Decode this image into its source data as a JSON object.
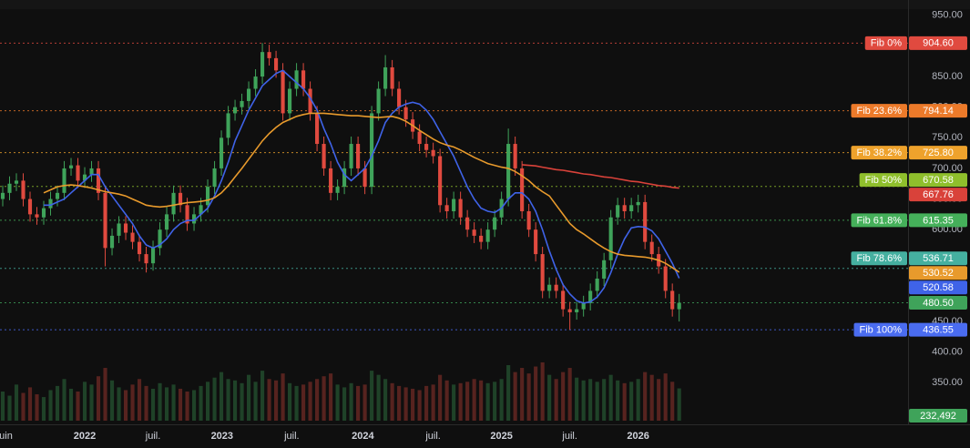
{
  "chart_data": {
    "type": "candlestick",
    "xlim": [
      -0.4,
      132.5
    ],
    "xticks": [
      {
        "value": 0.3,
        "label": "juin"
      },
      {
        "value": 12,
        "label": "2022"
      },
      {
        "value": 22,
        "label": "juil."
      },
      {
        "value": 32.1,
        "label": "2023"
      },
      {
        "value": 42.3,
        "label": "juil."
      },
      {
        "value": 52.7,
        "label": "2024"
      },
      {
        "value": 63,
        "label": "juil."
      },
      {
        "value": 73,
        "label": "2025"
      },
      {
        "value": 83,
        "label": "juil."
      },
      {
        "value": 93,
        "label": "2026"
      }
    ],
    "ylim": [
      288,
      975
    ],
    "yticks": [
      {
        "value": 350,
        "label": "350.00"
      },
      {
        "value": 400,
        "label": "400.00"
      },
      {
        "value": 450,
        "label": "450.00"
      },
      {
        "value": 500,
        "label": "500.00"
      },
      {
        "value": 550,
        "label": "550.00"
      },
      {
        "value": 600,
        "label": "600.00"
      },
      {
        "value": 650,
        "label": "650.00"
      },
      {
        "value": 700,
        "label": "700.00"
      },
      {
        "value": 750,
        "label": "750.00"
      },
      {
        "value": 800,
        "label": "800.00"
      },
      {
        "value": 850,
        "label": "850.00"
      },
      {
        "value": 900,
        "label": "900.00"
      },
      {
        "value": 950,
        "label": "950.00"
      }
    ],
    "up_color": "#3fa35a",
    "down_color": "#e04a3f",
    "open": [
      650,
      660,
      675,
      680,
      650,
      625,
      620,
      635,
      650,
      660,
      700,
      705,
      680,
      690,
      700,
      660,
      570,
      590,
      610,
      595,
      580,
      560,
      545,
      570,
      600,
      625,
      660,
      640,
      610,
      625,
      640,
      670,
      700,
      750,
      790,
      800,
      810,
      830,
      850,
      890,
      880,
      860,
      790,
      830,
      860,
      830,
      790,
      740,
      700,
      660,
      670,
      700,
      740,
      700,
      670,
      790,
      830,
      865,
      830,
      800,
      780,
      760,
      740,
      730,
      720,
      640,
      630,
      650,
      620,
      600,
      590,
      580,
      600,
      620,
      650,
      740,
      700,
      630,
      600,
      560,
      500,
      510,
      500,
      470,
      465,
      470,
      480,
      500,
      520,
      550,
      620,
      640,
      630,
      640,
      645,
      580,
      560,
      540,
      500,
      470
    ],
    "high": [
      672,
      687,
      692,
      692,
      662,
      637,
      647,
      662,
      672,
      712,
      717,
      717,
      702,
      712,
      712,
      672,
      602,
      622,
      622,
      607,
      592,
      572,
      582,
      612,
      637,
      672,
      672,
      652,
      637,
      652,
      682,
      712,
      762,
      802,
      812,
      822,
      842,
      862,
      904.6,
      902,
      892,
      872,
      842,
      872,
      872,
      842,
      802,
      752,
      712,
      682,
      712,
      752,
      752,
      712,
      802,
      842,
      885,
      877,
      842,
      812,
      792,
      772,
      752,
      742,
      732,
      652,
      662,
      662,
      632,
      612,
      602,
      612,
      632,
      662,
      765,
      752,
      712,
      642,
      612,
      572,
      522,
      522,
      512,
      482,
      482,
      492,
      512,
      532,
      562,
      632,
      652,
      652,
      652,
      657,
      657,
      592,
      572,
      552,
      512,
      495
    ],
    "low": [
      638,
      648,
      663,
      638,
      613,
      608,
      608,
      623,
      638,
      648,
      688,
      668,
      668,
      678,
      648,
      540,
      558,
      578,
      583,
      568,
      548,
      530,
      533,
      558,
      588,
      613,
      628,
      598,
      598,
      613,
      628,
      658,
      688,
      738,
      778,
      788,
      798,
      818,
      838,
      868,
      848,
      778,
      778,
      818,
      818,
      778,
      728,
      688,
      648,
      648,
      658,
      688,
      688,
      658,
      658,
      778,
      818,
      818,
      788,
      768,
      748,
      728,
      718,
      708,
      628,
      618,
      618,
      608,
      588,
      578,
      568,
      568,
      588,
      608,
      638,
      688,
      618,
      588,
      548,
      488,
      488,
      488,
      458,
      436.55,
      453,
      458,
      468,
      488,
      508,
      538,
      608,
      618,
      618,
      628,
      568,
      548,
      528,
      488,
      458,
      450
    ],
    "close": [
      660,
      675,
      680,
      650,
      625,
      620,
      635,
      650,
      660,
      700,
      705,
      680,
      690,
      700,
      660,
      570,
      590,
      610,
      595,
      580,
      560,
      545,
      570,
      600,
      625,
      660,
      640,
      610,
      625,
      640,
      670,
      700,
      750,
      790,
      800,
      810,
      830,
      850,
      890,
      880,
      860,
      790,
      830,
      860,
      830,
      790,
      740,
      700,
      660,
      670,
      700,
      740,
      700,
      670,
      790,
      830,
      865,
      830,
      800,
      780,
      760,
      740,
      730,
      720,
      640,
      630,
      650,
      620,
      600,
      590,
      580,
      600,
      620,
      650,
      740,
      700,
      630,
      600,
      560,
      500,
      510,
      500,
      470,
      465,
      470,
      480,
      500,
      520,
      550,
      620,
      640,
      630,
      640,
      645,
      580,
      560,
      540,
      500,
      470,
      480.5
    ],
    "last_price_label": "480.50",
    "volume": {
      "lim": [
        0,
        800000
      ],
      "last_label": "232,492",
      "values": [
        210000,
        180000,
        260000,
        200000,
        240000,
        190000,
        170000,
        220000,
        250000,
        300000,
        230000,
        210000,
        280000,
        260000,
        320000,
        380000,
        290000,
        240000,
        220000,
        260000,
        300000,
        250000,
        230000,
        270000,
        240000,
        260000,
        230000,
        210000,
        220000,
        250000,
        280000,
        310000,
        350000,
        300000,
        290000,
        270000,
        330000,
        280000,
        360000,
        300000,
        290000,
        340000,
        270000,
        250000,
        260000,
        280000,
        300000,
        320000,
        340000,
        260000,
        240000,
        270000,
        250000,
        260000,
        360000,
        330000,
        300000,
        270000,
        250000,
        240000,
        230000,
        220000,
        250000,
        260000,
        330000,
        290000,
        260000,
        270000,
        280000,
        300000,
        290000,
        270000,
        280000,
        300000,
        400000,
        350000,
        380000,
        340000,
        390000,
        420000,
        330000,
        300000,
        350000,
        380000,
        310000,
        290000,
        300000,
        280000,
        300000,
        330000,
        290000,
        270000,
        280000,
        300000,
        350000,
        330000,
        300000,
        340000,
        280000,
        232492
      ]
    },
    "moving_averages": [
      {
        "color": "#3f63e8",
        "last_label": "520.58",
        "values": [
          null,
          null,
          null,
          null,
          null,
          null,
          640,
          640,
          645,
          650,
          660,
          670,
          680,
          690,
          690,
          670,
          655,
          640,
          625,
          610,
          590,
          575,
          570,
          575,
          585,
          600,
          610,
          615,
          615,
          625,
          635,
          655,
          680,
          710,
          745,
          770,
          795,
          815,
          835,
          845,
          855,
          860,
          850,
          840,
          830,
          815,
          795,
          765,
          740,
          710,
          690,
          680,
          690,
          700,
          720,
          745,
          775,
          790,
          800,
          805,
          808,
          805,
          795,
          780,
          760,
          740,
          720,
          695,
          670,
          650,
          635,
          630,
          628,
          635,
          650,
          660,
          660,
          650,
          630,
          600,
          565,
          535,
          510,
          495,
          484,
          480,
          482,
          490,
          505,
          530,
          560,
          585,
          603,
          605,
          604,
          598,
          585,
          565,
          545,
          520.58
        ]
      },
      {
        "color": "#e89a2c",
        "last_label": "530.52",
        "values": [
          null,
          null,
          null,
          null,
          null,
          null,
          660,
          665,
          670,
          672,
          673,
          672,
          670,
          668,
          665,
          662,
          660,
          658,
          655,
          650,
          645,
          640,
          638,
          637,
          638,
          640,
          642,
          644,
          645,
          646,
          648,
          652,
          660,
          672,
          686,
          700,
          715,
          730,
          745,
          757,
          767,
          775,
          780,
          785,
          788,
          790,
          790,
          790,
          789,
          788,
          787,
          786,
          786,
          785,
          784,
          783,
          784,
          785,
          782,
          777,
          770,
          762,
          755,
          748,
          742,
          738,
          735,
          730,
          724,
          718,
          713,
          708,
          705,
          702,
          700,
          695,
          688,
          680,
          670,
          662,
          655,
          640,
          625,
          610,
          600,
          593,
          585,
          577,
          570,
          564,
          560,
          558,
          557,
          556,
          555,
          553,
          550,
          545,
          538,
          530.52
        ]
      },
      {
        "color": "#d9423a",
        "last_label": "667.76",
        "values": [
          null,
          null,
          null,
          null,
          null,
          null,
          null,
          null,
          null,
          null,
          null,
          null,
          null,
          null,
          null,
          null,
          null,
          null,
          null,
          null,
          null,
          null,
          null,
          null,
          null,
          null,
          null,
          null,
          null,
          null,
          null,
          null,
          null,
          null,
          null,
          null,
          null,
          null,
          null,
          null,
          null,
          null,
          null,
          null,
          null,
          null,
          null,
          null,
          null,
          null,
          null,
          null,
          null,
          null,
          null,
          null,
          null,
          null,
          null,
          null,
          null,
          null,
          null,
          null,
          null,
          null,
          null,
          null,
          null,
          null,
          null,
          null,
          null,
          null,
          null,
          null,
          706,
          705,
          704,
          702,
          700,
          698,
          697,
          695,
          693,
          691,
          690,
          688,
          686,
          685,
          683,
          681,
          679,
          678,
          676,
          674,
          672,
          671,
          669,
          667.76
        ]
      }
    ],
    "fib": {
      "names": [
        "Fib 0%",
        "Fib 23.6%",
        "Fib 38.2%",
        "Fib 50%",
        "Fib 61.8%",
        "Fib 78.6%",
        "Fib 100%"
      ],
      "values": [
        904.6,
        794.14,
        725.8,
        670.58,
        615.35,
        536.71,
        436.55
      ],
      "value_labels": [
        "904.60",
        "794.14",
        "725.80",
        "670.58",
        "615.35",
        "536.71",
        "436.55"
      ],
      "colors": [
        "#e04a3f",
        "#ec7a2a",
        "#eea22c",
        "#8fbf2c",
        "#45b05a",
        "#45b0a0",
        "#4a6cf0"
      ]
    }
  }
}
